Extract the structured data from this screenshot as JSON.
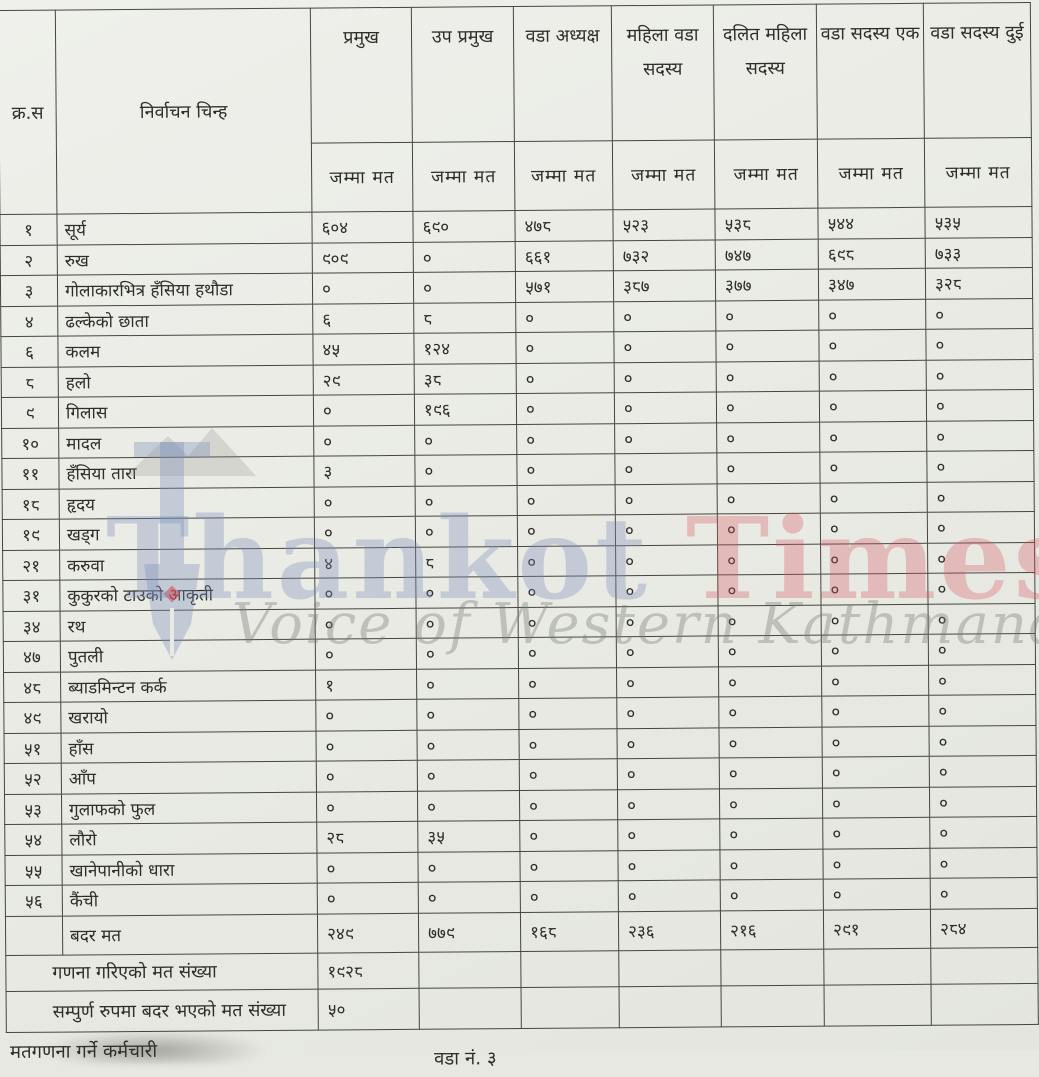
{
  "header": {
    "serial_label": "क्र.स",
    "symbol_label": "निर्वाचन चिन्ह",
    "positions": [
      "प्रमुख",
      "उप प्रमुख",
      "वडा अध्यक्ष",
      "महिला वडा सदस्य",
      "दलित महिला सदस्य",
      "वडा सदस्य एक",
      "वडा सदस्य दुई"
    ],
    "total_votes_label": "जम्मा मत"
  },
  "rows": [
    {
      "sn": "१",
      "symbol": "सूर्य",
      "votes": [
        "६०४",
        "६९०",
        "४७८",
        "५२३",
        "५३८",
        "५४४",
        "५३५"
      ]
    },
    {
      "sn": "२",
      "symbol": "रुख",
      "votes": [
        "९०९",
        "०",
        "६६१",
        "७३२",
        "७४७",
        "६९८",
        "७३३"
      ]
    },
    {
      "sn": "३",
      "symbol": "गोलाकारभित्र हँसिया हथौडा",
      "votes": [
        "०",
        "०",
        "५७१",
        "३८७",
        "३७७",
        "३४७",
        "३२८"
      ]
    },
    {
      "sn": "४",
      "symbol": "ढल्केको छाता",
      "votes": [
        "६",
        "८",
        "०",
        "०",
        "०",
        "०",
        "०"
      ]
    },
    {
      "sn": "६",
      "symbol": "कलम",
      "votes": [
        "४५",
        "१२४",
        "०",
        "०",
        "०",
        "०",
        "०"
      ]
    },
    {
      "sn": "८",
      "symbol": "हलो",
      "votes": [
        "२९",
        "३८",
        "०",
        "०",
        "०",
        "०",
        "०"
      ]
    },
    {
      "sn": "९",
      "symbol": "गिलास",
      "votes": [
        "०",
        "१९६",
        "०",
        "०",
        "०",
        "०",
        "०"
      ]
    },
    {
      "sn": "१०",
      "symbol": "मादल",
      "votes": [
        "०",
        "०",
        "०",
        "०",
        "०",
        "०",
        "०"
      ]
    },
    {
      "sn": "११",
      "symbol": "हँसिया तारा",
      "votes": [
        "३",
        "०",
        "०",
        "०",
        "०",
        "०",
        "०"
      ]
    },
    {
      "sn": "१८",
      "symbol": "हृदय",
      "votes": [
        "०",
        "०",
        "०",
        "०",
        "०",
        "०",
        "०"
      ]
    },
    {
      "sn": "१९",
      "symbol": "खड्ग",
      "votes": [
        "०",
        "०",
        "०",
        "०",
        "०",
        "०",
        "०"
      ]
    },
    {
      "sn": "२१",
      "symbol": "करुवा",
      "votes": [
        "४",
        "८",
        "०",
        "०",
        "०",
        "०",
        "०"
      ]
    },
    {
      "sn": "३१",
      "symbol": "कुकुरको टाउको आकृती",
      "votes": [
        "०",
        "०",
        "०",
        "०",
        "०",
        "०",
        "०"
      ]
    },
    {
      "sn": "३४",
      "symbol": "रथ",
      "votes": [
        "०",
        "०",
        "०",
        "०",
        "०",
        "०",
        "०"
      ]
    },
    {
      "sn": "४७",
      "symbol": "पुतली",
      "votes": [
        "०",
        "०",
        "०",
        "०",
        "०",
        "०",
        "०"
      ]
    },
    {
      "sn": "४८",
      "symbol": "ब्याडमिन्टन कर्क",
      "votes": [
        "१",
        "०",
        "०",
        "०",
        "०",
        "०",
        "०"
      ]
    },
    {
      "sn": "४९",
      "symbol": "खरायो",
      "votes": [
        "०",
        "०",
        "०",
        "०",
        "०",
        "०",
        "०"
      ]
    },
    {
      "sn": "५१",
      "symbol": "हाँस",
      "votes": [
        "०",
        "०",
        "०",
        "०",
        "०",
        "०",
        "०"
      ]
    },
    {
      "sn": "५२",
      "symbol": "आँप",
      "votes": [
        "०",
        "०",
        "०",
        "०",
        "०",
        "०",
        "०"
      ]
    },
    {
      "sn": "५३",
      "symbol": "गुलाफको फुल",
      "votes": [
        "०",
        "०",
        "०",
        "०",
        "०",
        "०",
        "०"
      ]
    },
    {
      "sn": "५४",
      "symbol": "लौरो",
      "votes": [
        "२८",
        "३५",
        "०",
        "०",
        "०",
        "०",
        "०"
      ]
    },
    {
      "sn": "५५",
      "symbol": "खानेपानीको धारा",
      "votes": [
        "०",
        "०",
        "०",
        "०",
        "०",
        "०",
        "०"
      ]
    },
    {
      "sn": "५६",
      "symbol": "कैंची",
      "votes": [
        "०",
        "०",
        "०",
        "०",
        "०",
        "०",
        "०"
      ]
    },
    {
      "sn": "",
      "symbol": "बदर मत",
      "votes": [
        "२४९",
        "७७९",
        "१६८",
        "२३६",
        "२१६",
        "२९१",
        "२८४"
      ]
    }
  ],
  "summary": [
    {
      "label": "गणना गरिएको मत संख्या",
      "value": "१९२८"
    },
    {
      "label": "सम्पुर्ण रुपमा बदर भएको मत संख्या",
      "value": "५०"
    }
  ],
  "footer": {
    "staff_label": "मतगणना गर्ने कर्मचारी",
    "ward_label": "वडा नं. ३"
  },
  "watermark": {
    "brand_word1": "Thankot",
    "brand_word2": "Times",
    "tagline": "Voice of Western Kathmandu",
    "brand_color1": "#7a8eb8",
    "brand_color2": "#d65660"
  }
}
